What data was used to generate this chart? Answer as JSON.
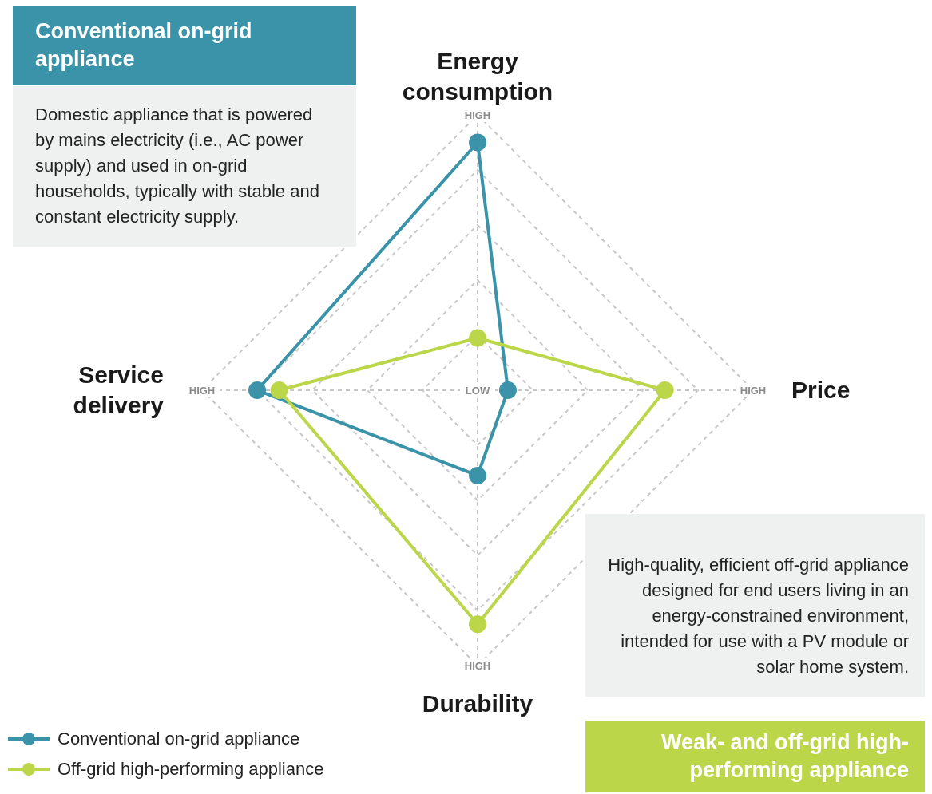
{
  "chart_data": {
    "type": "radar",
    "categories": [
      "Energy consumption",
      "Price",
      "Durability",
      "Service delivery"
    ],
    "series": [
      {
        "name": "Conventional on-grid appliance",
        "color": "#3a93a8",
        "values": [
          0.9,
          0.11,
          0.31,
          0.8
        ]
      },
      {
        "name": "Off-grid high-performing appliance",
        "color": "#bcd64a",
        "values": [
          0.19,
          0.68,
          0.85,
          0.72
        ]
      }
    ],
    "ylim": [
      0,
      1
    ],
    "yticks": [
      {
        "value": 0,
        "label": "LOW"
      },
      {
        "value": 1,
        "label": "HIGH"
      }
    ],
    "grid": true,
    "legend": "bottom left",
    "marker": "circle",
    "line_style": "solid",
    "annotations": [
      "Conventional on-grid appliance",
      "Domestic appliance that is powered by mains electricity (i.e., AC power supply) and used in on-grid households, typically with stable and constant electricity supply.",
      "High-quality, efficient off-grid appliance designed for end users living in an energy-constrained environment, intended for use with a PV module or solar home system.",
      "Weak- and off-grid high-performing appliance"
    ]
  }
}
